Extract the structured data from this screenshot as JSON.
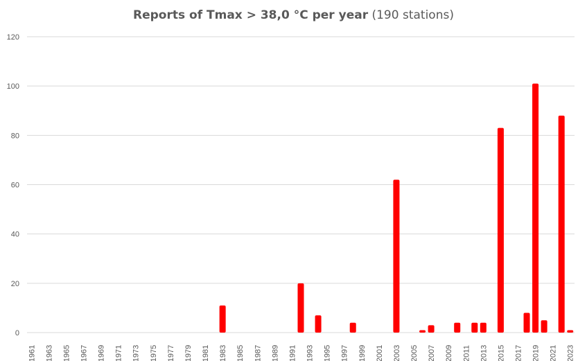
{
  "chart_data": {
    "type": "bar",
    "title": "Reports of Tmax > 38,0 °C per year",
    "subtitle": "(190 stations)",
    "xlabel": "",
    "ylabel": "",
    "ylim": [
      0,
      120
    ],
    "yticks": [
      0,
      20,
      40,
      60,
      80,
      100,
      120
    ],
    "grid": true,
    "legend": "none",
    "bar_color": "#ff0000",
    "grid_color": "#d9d9d9",
    "categories": [
      "1961",
      "1962",
      "1963",
      "1964",
      "1965",
      "1966",
      "1967",
      "1968",
      "1969",
      "1970",
      "1971",
      "1972",
      "1973",
      "1974",
      "1975",
      "1976",
      "1977",
      "1978",
      "1979",
      "1980",
      "1981",
      "1982",
      "1983",
      "1984",
      "1985",
      "1986",
      "1987",
      "1988",
      "1989",
      "1990",
      "1991",
      "1992",
      "1993",
      "1994",
      "1995",
      "1996",
      "1997",
      "1998",
      "1999",
      "2000",
      "2001",
      "2002",
      "2003",
      "2004",
      "2005",
      "2006",
      "2007",
      "2008",
      "2009",
      "2010",
      "2011",
      "2012",
      "2013",
      "2014",
      "2015",
      "2016",
      "2017",
      "2018",
      "2019",
      "2020",
      "2021",
      "2022",
      "2023"
    ],
    "tick_labels": [
      "1961",
      "1963",
      "1965",
      "1967",
      "1969",
      "1971",
      "1973",
      "1975",
      "1977",
      "1979",
      "1981",
      "1983",
      "1985",
      "1987",
      "1989",
      "1991",
      "1993",
      "1995",
      "1997",
      "1999",
      "2001",
      "2003",
      "2005",
      "2007",
      "2009",
      "2011",
      "2013",
      "2015",
      "2017",
      "2019",
      "2021",
      "2023"
    ],
    "values": [
      0,
      0,
      0,
      0,
      0,
      0,
      0,
      0,
      0,
      0,
      0,
      0,
      0,
      0,
      0,
      0,
      0,
      0,
      0,
      0,
      0,
      0,
      11,
      0,
      0,
      0,
      0,
      0,
      0,
      0,
      0,
      20,
      0,
      7,
      0,
      0,
      0,
      4,
      0,
      0,
      0,
      0,
      62,
      0,
      0,
      1,
      3,
      0,
      0,
      4,
      0,
      4,
      4,
      0,
      83,
      0,
      0,
      8,
      101,
      5,
      0,
      88,
      1
    ]
  }
}
